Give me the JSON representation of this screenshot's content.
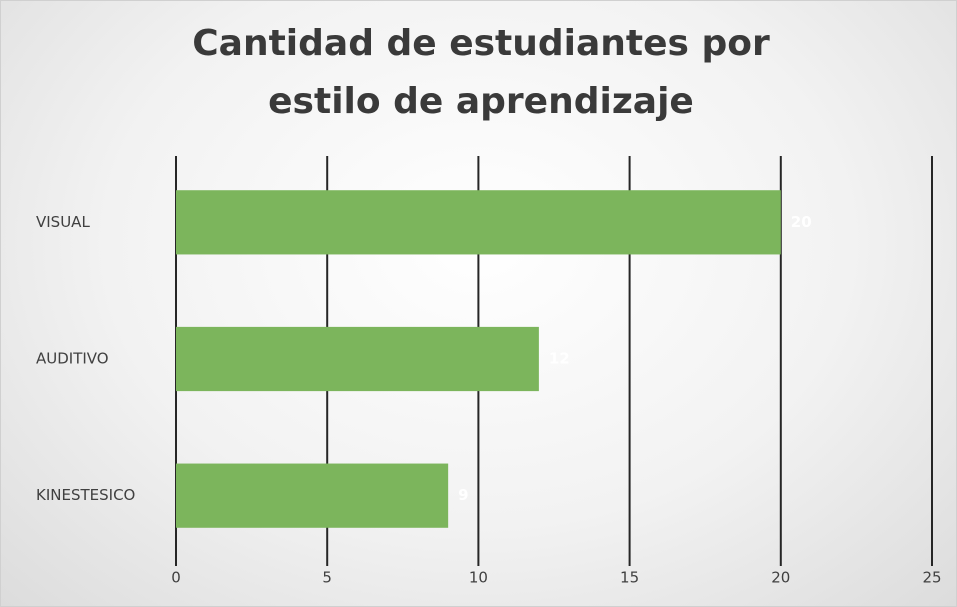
{
  "chart_data": {
    "type": "barh",
    "title": "Cantidad de estudiantes por estilo de aprendizaje",
    "categories": [
      "VISUAL",
      "AUDITIVO",
      "KINESTESICO"
    ],
    "values": [
      20,
      12,
      9
    ],
    "color": "#7cb55c",
    "xlim": [
      0,
      25
    ],
    "xticks": [
      0,
      5,
      10,
      15,
      20,
      25
    ],
    "grid": true,
    "data_labels": true
  }
}
